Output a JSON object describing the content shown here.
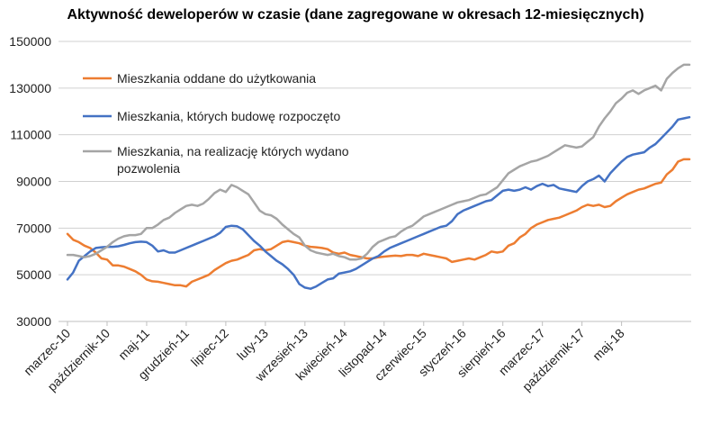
{
  "chart_data": {
    "type": "line",
    "title": "Aktywność deweloperów w czasie (dane zagregowane w okresach 12-miesięcznych)",
    "xlabel": "",
    "ylabel": "",
    "ylim": [
      30000,
      150000
    ],
    "yticks": [
      30000,
      50000,
      70000,
      90000,
      110000,
      130000,
      150000
    ],
    "grid": "horizontal",
    "legend_position": "upper-left",
    "x_tick_labels": [
      "marzec-10",
      "październik-10",
      "maj-11",
      "grudzień-11",
      "lipiec-12",
      "luty-13",
      "wrzesień-13",
      "kwiecień-14",
      "listopad-14",
      "czerwiec-15",
      "styczeń-16",
      "sierpień-16",
      "marzec-17",
      "październik-17",
      "maj-18"
    ],
    "series": [
      {
        "name": "Mieszkania oddane do użytkowania",
        "color": "#ED7D31",
        "values": [
          67500,
          65000,
          64000,
          62500,
          61500,
          59500,
          57000,
          56500,
          54000,
          54000,
          53500,
          52500,
          51500,
          50000,
          48000,
          47200,
          47000,
          46500,
          46000,
          45500,
          45500,
          45000,
          47000,
          48000,
          49000,
          50000,
          52000,
          53500,
          55000,
          56000,
          56500,
          57500,
          58500,
          60500,
          61000,
          60500,
          61000,
          62500,
          64000,
          64500,
          64000,
          63500,
          62500,
          62000,
          61800,
          61500,
          61000,
          59500,
          59000,
          59500,
          58500,
          58000,
          57500,
          57000,
          57000,
          57500,
          57800,
          58000,
          58200,
          58000,
          58500,
          58500,
          58000,
          59000,
          58500,
          58000,
          57500,
          57000,
          55500,
          56000,
          56500,
          57000,
          56500,
          57500,
          58500,
          60000,
          59500,
          60000,
          62500,
          63500,
          66000,
          67500,
          70000,
          71500,
          72500,
          73500,
          74000,
          74500,
          75500,
          76500,
          77500,
          79000,
          80000,
          79500,
          80000,
          79000,
          79500,
          81500,
          83000,
          84500,
          85500,
          86500,
          87000,
          88000,
          89000,
          89500,
          93000,
          95000,
          98500,
          99500,
          99500
        ]
      },
      {
        "name": "Mieszkania, których budowę rozpoczęto",
        "color": "#4472C4",
        "values": [
          48000,
          51000,
          56000,
          58000,
          60000,
          61500,
          61800,
          62000,
          62000,
          62200,
          62800,
          63500,
          64000,
          64200,
          64000,
          62500,
          60000,
          60500,
          59500,
          59500,
          60500,
          61500,
          62500,
          63500,
          64500,
          65500,
          66500,
          68000,
          70500,
          71000,
          70800,
          69500,
          67000,
          64500,
          62500,
          60000,
          58000,
          56000,
          54500,
          52500,
          50000,
          46000,
          44500,
          44000,
          45000,
          46500,
          48000,
          48500,
          50500,
          51000,
          51500,
          52500,
          54000,
          55500,
          57000,
          58000,
          60000,
          61500,
          62500,
          63500,
          64500,
          65500,
          66500,
          67500,
          68500,
          69500,
          70500,
          71000,
          73000,
          76000,
          77500,
          78500,
          79500,
          80500,
          81500,
          82000,
          84000,
          86000,
          86500,
          86000,
          86500,
          87500,
          86500,
          88000,
          89000,
          88000,
          88500,
          87000,
          86500,
          86000,
          85500,
          88000,
          90000,
          91000,
          92500,
          90000,
          93500,
          96000,
          98500,
          100500,
          101500,
          102000,
          102500,
          104500,
          106000,
          108500,
          111000,
          113500,
          116500,
          117000,
          117500
        ]
      },
      {
        "name": "Mieszkania, na realizację których wydano pozwolenia",
        "name_lines": [
          "Mieszkania, na realizację których wydano",
          "pozwolenia"
        ],
        "color": "#A5A5A5",
        "values": [
          58500,
          58500,
          58000,
          57500,
          58000,
          59000,
          60500,
          62000,
          64000,
          65500,
          66500,
          67000,
          67000,
          67500,
          70000,
          70000,
          71500,
          73500,
          74500,
          76500,
          78000,
          79500,
          80000,
          79500,
          80500,
          82500,
          85000,
          86500,
          85500,
          88500,
          87500,
          86000,
          84500,
          81000,
          77500,
          76000,
          75500,
          74000,
          71500,
          69500,
          67500,
          66000,
          62500,
          60500,
          59500,
          59000,
          58500,
          59000,
          58000,
          57500,
          56500,
          56500,
          57000,
          59000,
          62000,
          64000,
          65000,
          66000,
          66500,
          68500,
          70000,
          71000,
          73000,
          75000,
          76000,
          77000,
          78000,
          79000,
          80000,
          81000,
          81500,
          82000,
          83000,
          84000,
          84500,
          86000,
          87500,
          90500,
          93500,
          95000,
          96500,
          97500,
          98500,
          99000,
          100000,
          101000,
          102500,
          104000,
          105500,
          105000,
          104500,
          105000,
          107000,
          109000,
          113500,
          117000,
          120000,
          123500,
          125500,
          128000,
          129000,
          127500,
          129000,
          130000,
          131000,
          129000,
          134000,
          136500,
          138500,
          140000,
          140000
        ]
      }
    ]
  }
}
